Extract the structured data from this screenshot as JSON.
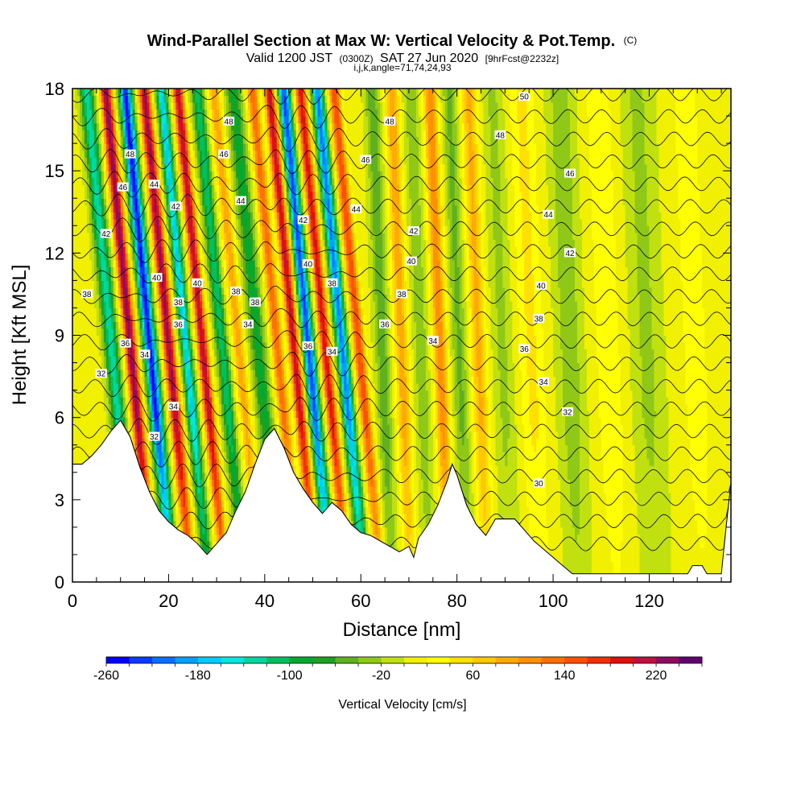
{
  "header": {
    "title": "Wind-Parallel Section at Max W: Vertical Velocity & Pot.Temp.",
    "copyright": "(C)",
    "valid_prefix": "Valid 1200 JST",
    "valid_utc": "(0300Z)",
    "valid_date": "SAT 27 Jun 2020",
    "forecast": "[9hrFcst@2232z]",
    "indices": "i,j,k,angle=71,74,24,93"
  },
  "chart_data": {
    "type": "heatmap",
    "xlabel": "Distance [nm]",
    "ylabel": "Height [Kft MSL]",
    "xlim": [
      0,
      137
    ],
    "ylim": [
      0,
      18
    ],
    "x_ticks": [
      0,
      20,
      40,
      60,
      80,
      100,
      120
    ],
    "y_ticks": [
      0,
      3,
      6,
      9,
      12,
      15,
      18
    ],
    "colorbar": {
      "label": "Vertical Velocity [cm/s]",
      "min": -260,
      "max": 260,
      "step": 20,
      "tick_labels": [
        "-260",
        "-180",
        "-100",
        "-20",
        "60",
        "140",
        "220"
      ],
      "tick_values": [
        -260,
        -180,
        -100,
        -20,
        60,
        140,
        220
      ],
      "colors": [
        "#0000ff",
        "#0a3cff",
        "#0a6eff",
        "#00a0ff",
        "#00ccff",
        "#00e8e0",
        "#00d8a0",
        "#00c060",
        "#00aa30",
        "#20a020",
        "#60b020",
        "#90c818",
        "#c0e010",
        "#f0f000",
        "#ffff00",
        "#ffe000",
        "#ffc800",
        "#ffaa00",
        "#ff9000",
        "#ff7000",
        "#ff5000",
        "#f03000",
        "#e01010",
        "#c01040",
        "#900a60",
        "#600070"
      ]
    },
    "theta_contour_labels": [
      {
        "value": "30",
        "x": 97,
        "y": 3.6
      },
      {
        "value": "32",
        "x": 6,
        "y": 7.6
      },
      {
        "value": "32",
        "x": 103,
        "y": 6.2
      },
      {
        "value": "32",
        "x": 17,
        "y": 5.3
      },
      {
        "value": "34",
        "x": 15,
        "y": 8.3
      },
      {
        "value": "34",
        "x": 21,
        "y": 6.4
      },
      {
        "value": "34",
        "x": 36.5,
        "y": 9.4
      },
      {
        "value": "34",
        "x": 54,
        "y": 8.4
      },
      {
        "value": "34",
        "x": 75,
        "y": 8.8
      },
      {
        "value": "34",
        "x": 98,
        "y": 7.3
      },
      {
        "value": "36",
        "x": 11,
        "y": 8.7
      },
      {
        "value": "36",
        "x": 22,
        "y": 9.4
      },
      {
        "value": "36",
        "x": 49,
        "y": 8.6
      },
      {
        "value": "36",
        "x": 65,
        "y": 9.4
      },
      {
        "value": "36",
        "x": 94,
        "y": 8.5
      },
      {
        "value": "38",
        "x": 3,
        "y": 10.5
      },
      {
        "value": "38",
        "x": 22,
        "y": 10.2
      },
      {
        "value": "38",
        "x": 34,
        "y": 10.6
      },
      {
        "value": "38",
        "x": 38,
        "y": 10.2
      },
      {
        "value": "38",
        "x": 54,
        "y": 10.9
      },
      {
        "value": "38",
        "x": 68.5,
        "y": 10.5
      },
      {
        "value": "38",
        "x": 97,
        "y": 9.6
      },
      {
        "value": "40",
        "x": 17.5,
        "y": 11.1
      },
      {
        "value": "40",
        "x": 26,
        "y": 10.9
      },
      {
        "value": "40",
        "x": 49,
        "y": 11.6
      },
      {
        "value": "40",
        "x": 70.5,
        "y": 11.7
      },
      {
        "value": "40",
        "x": 97.5,
        "y": 10.8
      },
      {
        "value": "42",
        "x": 7,
        "y": 12.7
      },
      {
        "value": "42",
        "x": 21.5,
        "y": 13.7
      },
      {
        "value": "42",
        "x": 48,
        "y": 13.2
      },
      {
        "value": "42",
        "x": 71,
        "y": 12.8
      },
      {
        "value": "42",
        "x": 103.5,
        "y": 12.0
      },
      {
        "value": "44",
        "x": 17,
        "y": 14.5
      },
      {
        "value": "44",
        "x": 35,
        "y": 13.9
      },
      {
        "value": "44",
        "x": 59,
        "y": 13.6
      },
      {
        "value": "44",
        "x": 99,
        "y": 13.4
      },
      {
        "value": "46",
        "x": 10.5,
        "y": 14.4
      },
      {
        "value": "46",
        "x": 31.5,
        "y": 15.6
      },
      {
        "value": "46",
        "x": 61,
        "y": 15.4
      },
      {
        "value": "46",
        "x": 103.5,
        "y": 14.9
      },
      {
        "value": "48",
        "x": 12,
        "y": 15.6
      },
      {
        "value": "48",
        "x": 32.5,
        "y": 16.8
      },
      {
        "value": "48",
        "x": 66,
        "y": 16.8
      },
      {
        "value": "48",
        "x": 89,
        "y": 16.3
      },
      {
        "value": "50",
        "x": 94,
        "y": 17.7
      }
    ]
  }
}
